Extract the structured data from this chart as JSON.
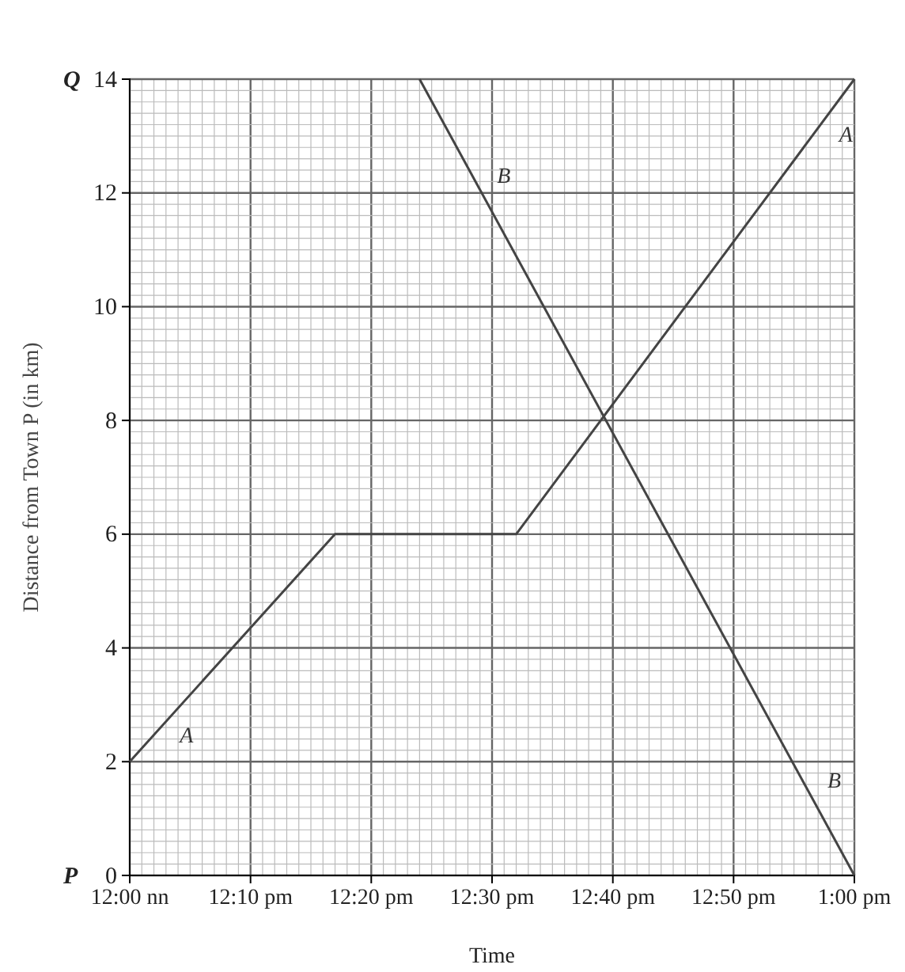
{
  "chart_data": {
    "type": "line",
    "xlabel": "Time",
    "ylabel": "Distance from Town P (in km)",
    "xlim": [
      12,
      13
    ],
    "ylim": [
      0,
      14
    ],
    "xticks": [
      {
        "value": 12,
        "label": "12:00 nn"
      },
      {
        "value": 12.1667,
        "label": "12:10 pm"
      },
      {
        "value": 12.3333,
        "label": "12:20 pm"
      },
      {
        "value": 12.5,
        "label": "12:30 pm"
      },
      {
        "value": 12.6667,
        "label": "12:40 pm"
      },
      {
        "value": 12.8333,
        "label": "12:50 pm"
      },
      {
        "value": 13,
        "label": "1:00 pm"
      }
    ],
    "yticks": [
      0,
      2,
      4,
      6,
      8,
      10,
      12,
      14
    ],
    "grid": true,
    "line_style": "solid",
    "marker": "none",
    "series": [
      {
        "name": "A",
        "color": "#444444",
        "x": [
          12,
          12.2833,
          12.5333,
          13
        ],
        "values": [
          2,
          6,
          6,
          14
        ]
      },
      {
        "name": "B",
        "color": "#444444",
        "x": [
          12.4,
          13
        ],
        "values": [
          14,
          0
        ]
      }
    ],
    "annotations": [
      "P",
      "Q"
    ]
  }
}
